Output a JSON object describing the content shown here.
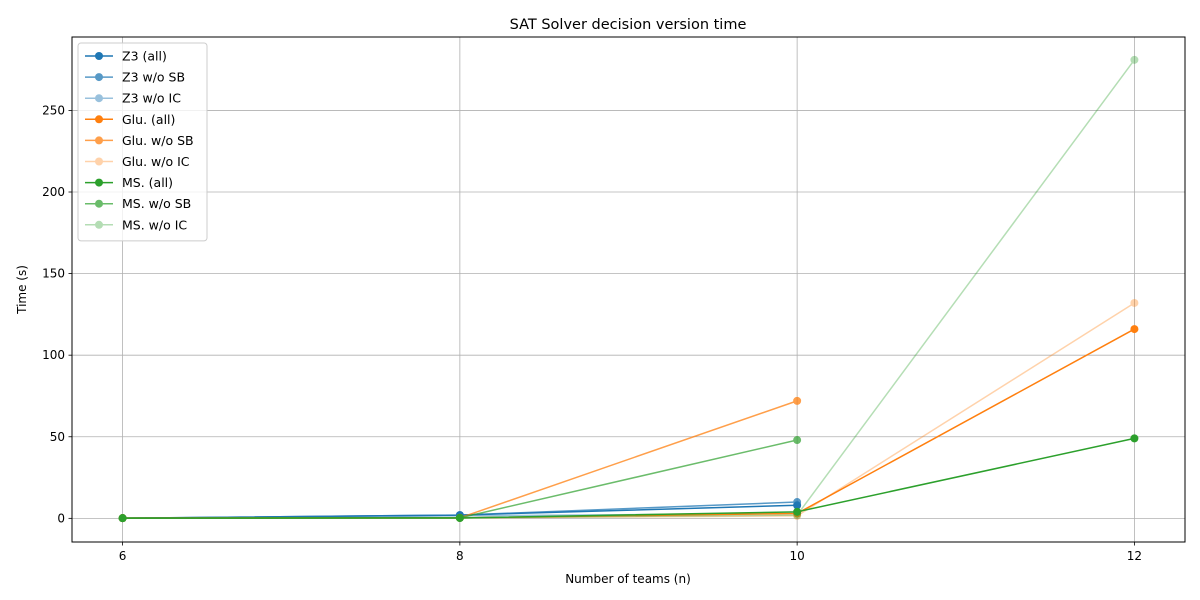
{
  "chart_data": {
    "type": "line",
    "title": "SAT Solver decision version time",
    "xlabel": "Number of teams (n)",
    "ylabel": "Time (s)",
    "x": [
      6,
      8,
      10,
      12
    ],
    "xlim": [
      5.7,
      12.3
    ],
    "ylim": [
      -14.5,
      295
    ],
    "xticks": [
      6,
      8,
      10,
      12
    ],
    "yticks": [
      0,
      50,
      100,
      150,
      200,
      250
    ],
    "grid": true,
    "legend_position": "upper-left",
    "series": [
      {
        "name": "Z3 (all)",
        "color": "#1f77b4",
        "alpha": 1.0,
        "values": [
          0.1,
          2.0,
          8.0,
          null
        ]
      },
      {
        "name": "Z3 w/o SB",
        "color": "#1f77b4",
        "alpha": 0.75,
        "values": [
          0.1,
          2.0,
          10.0,
          null
        ]
      },
      {
        "name": "Z3 w/o IC",
        "color": "#1f77b4",
        "alpha": 0.45,
        "values": [
          0.1,
          1.5,
          3.0,
          null
        ]
      },
      {
        "name": "Glu. (all)",
        "color": "#ff7f0e",
        "alpha": 1.0,
        "values": [
          0.1,
          0.3,
          3.0,
          116.0
        ]
      },
      {
        "name": "Glu. w/o SB",
        "color": "#ff7f0e",
        "alpha": 0.75,
        "values": [
          0.1,
          0.3,
          72.0,
          null
        ]
      },
      {
        "name": "Glu. w/o IC",
        "color": "#ff7f0e",
        "alpha": 0.35,
        "values": [
          0.1,
          0.3,
          1.5,
          132.0
        ]
      },
      {
        "name": "MS. (all)",
        "color": "#2ca02c",
        "alpha": 1.0,
        "values": [
          0.1,
          0.2,
          4.0,
          49.0
        ]
      },
      {
        "name": "MS. w/o SB",
        "color": "#2ca02c",
        "alpha": 0.7,
        "values": [
          0.1,
          0.3,
          48.0,
          null
        ]
      },
      {
        "name": "MS. w/o IC",
        "color": "#2ca02c",
        "alpha": 0.35,
        "values": [
          0.1,
          0.3,
          2.0,
          281.0
        ]
      }
    ]
  }
}
